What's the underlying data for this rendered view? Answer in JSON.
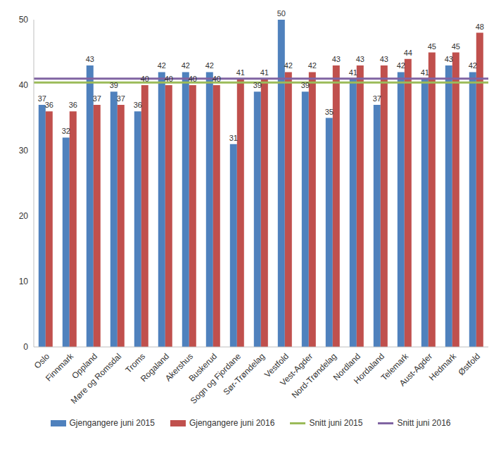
{
  "chart_data": {
    "type": "bar",
    "categories": [
      "Oslo",
      "Finnmark",
      "Oppland",
      "Møre og Romsdal",
      "Troms",
      "Rogaland",
      "Akershus",
      "Buskerud",
      "Sogn og Fjordane",
      "Sør-Trøndelag",
      "Vestfold",
      "Vest-Agder",
      "Nord-Trøndelag",
      "Nordland",
      "Hordaland",
      "Telemark",
      "Aust-Agder",
      "Hedmark",
      "Østfold"
    ],
    "series": [
      {
        "name": "Gjengangere juni 2015",
        "color": "#4f81bd",
        "values": [
          37,
          32,
          43,
          39,
          36,
          42,
          42,
          42,
          31,
          39,
          50,
          39,
          35,
          41,
          37,
          42,
          41,
          43,
          42
        ]
      },
      {
        "name": "Gjengangere juni 2016",
        "color": "#c0504d",
        "values": [
          36,
          36,
          37,
          37,
          40,
          40,
          40,
          40,
          41,
          41,
          42,
          42,
          43,
          43,
          43,
          44,
          45,
          45,
          48
        ]
      }
    ],
    "reference_lines": [
      {
        "name": "Snitt juni 2015",
        "color": "#9bbb59",
        "value": 40.4
      },
      {
        "name": "Snitt juni 2016",
        "color": "#8064a2",
        "value": 41
      }
    ],
    "ylim": [
      0,
      50
    ],
    "yticks": [
      0,
      10,
      20,
      30,
      40,
      50
    ],
    "grid": false,
    "data_labels": true,
    "legend": "bottom"
  }
}
